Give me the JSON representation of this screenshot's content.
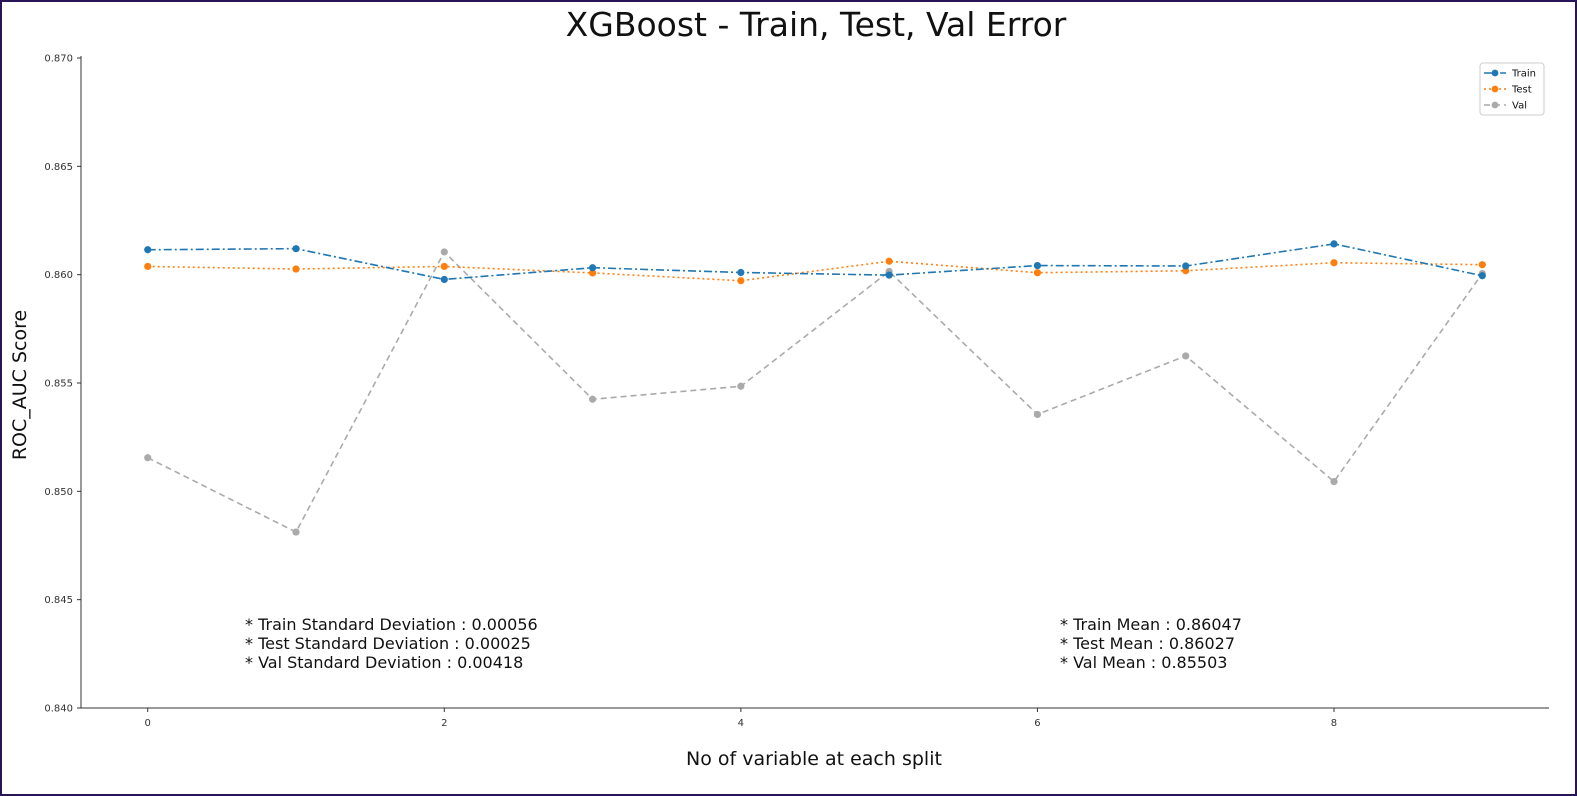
{
  "chart_data": {
    "type": "line",
    "title": "XGBoost - Train, Test, Val Error",
    "xlabel": "No of variable at each split",
    "ylabel": "ROC_AUC Score",
    "xlim": [
      -0.45,
      9.45
    ],
    "ylim": [
      0.84,
      0.87
    ],
    "x_ticks": [
      0,
      2,
      4,
      6,
      8
    ],
    "x_tick_labels": [
      "0",
      "2",
      "4",
      "6",
      "8"
    ],
    "y_ticks": [
      0.84,
      0.845,
      0.85,
      0.855,
      0.86,
      0.865,
      0.87
    ],
    "y_tick_labels": [
      "0.840",
      "0.845",
      "0.850",
      "0.855",
      "0.860",
      "0.865",
      "0.870"
    ],
    "grid": false,
    "legend_position": "top-right",
    "x": [
      0,
      1,
      2,
      3,
      4,
      5,
      6,
      7,
      8,
      9
    ],
    "series": [
      {
        "name": "Train",
        "color": "#1f77b4",
        "dash": "dash-dot",
        "values": [
          0.86115,
          0.8612,
          0.85978,
          0.86032,
          0.8601,
          0.85998,
          0.86042,
          0.8604,
          0.86142,
          0.85995
        ]
      },
      {
        "name": "Test",
        "color": "#ff7f0e",
        "dash": "dotted",
        "values": [
          0.86038,
          0.86026,
          0.86038,
          0.86008,
          0.85972,
          0.86062,
          0.86009,
          0.86018,
          0.86055,
          0.86046
        ]
      },
      {
        "name": "Val",
        "color": "#aaaaaa",
        "dash": "dashed",
        "values": [
          0.85155,
          0.84812,
          0.86105,
          0.85425,
          0.85485,
          0.86015,
          0.85355,
          0.85625,
          0.85045,
          0.86005
        ]
      }
    ],
    "annotations_left": [
      "* Train Standard Deviation : 0.00056",
      "* Test Standard Deviation : 0.00025",
      "* Val Standard Deviation : 0.00418"
    ],
    "annotations_right": [
      "* Train Mean : 0.86047",
      "* Test Mean : 0.86027",
      "* Val Mean : 0.85503"
    ]
  }
}
